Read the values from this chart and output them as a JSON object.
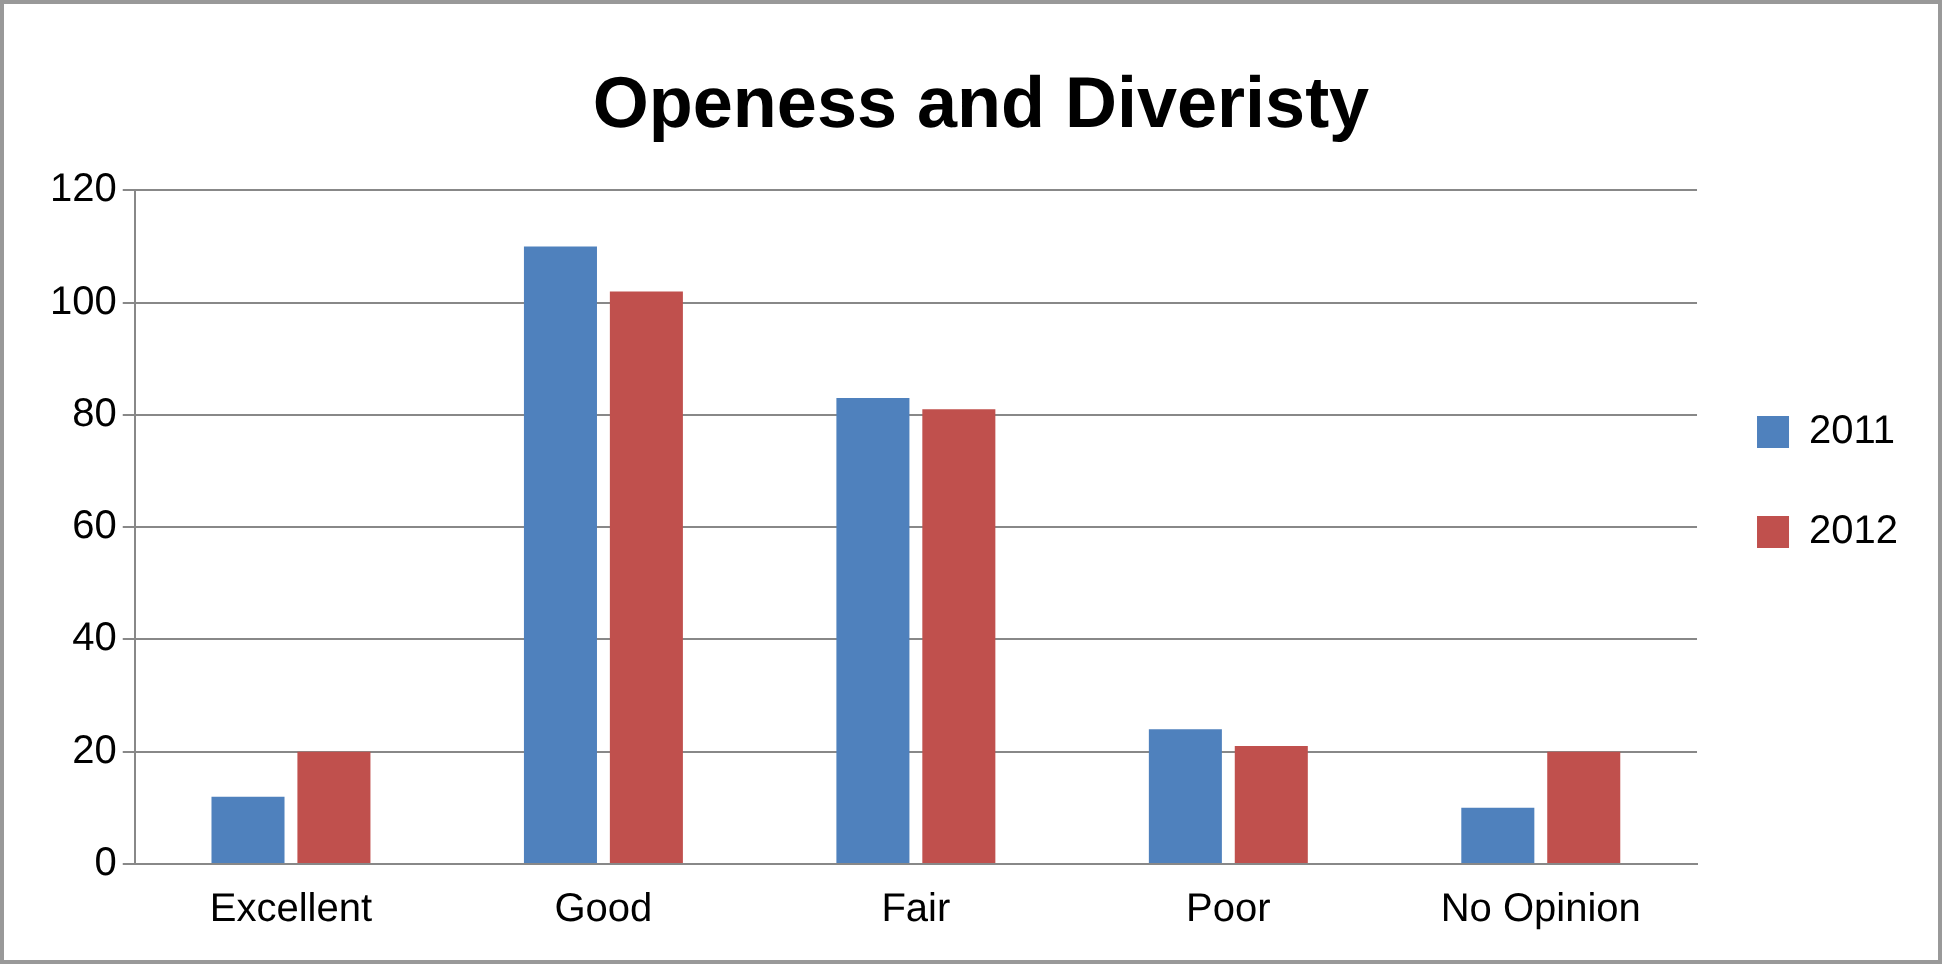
{
  "chart_data": {
    "type": "bar",
    "title": "Openess and Diveristy",
    "categories": [
      "Excellent",
      "Good",
      "Fair",
      "Poor",
      "No Opinion"
    ],
    "series": [
      {
        "name": "2011",
        "color": "#4f81bd",
        "values": [
          12,
          110,
          83,
          24,
          10
        ]
      },
      {
        "name": "2012",
        "color": "#c0504d",
        "values": [
          20,
          102,
          81,
          21,
          20
        ]
      }
    ],
    "ylim": [
      0,
      120
    ],
    "yticks": [
      0,
      20,
      40,
      60,
      80,
      100,
      120
    ],
    "grid": "y",
    "legend": "right"
  }
}
